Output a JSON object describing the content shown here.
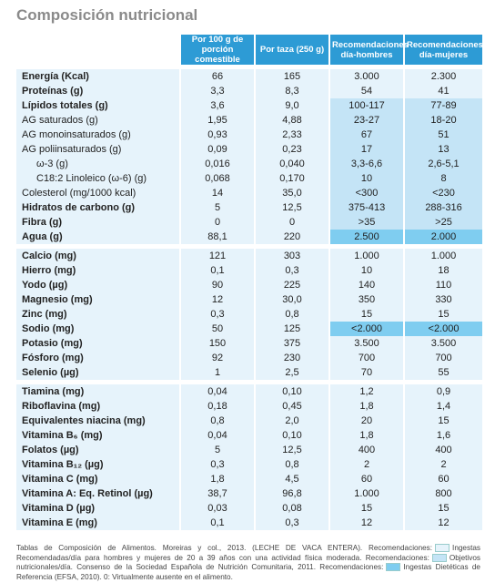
{
  "title": "Composición nutricional",
  "table": {
    "header": [
      "Por 100 g de porción comestible",
      "Por taza (250 g)",
      "Recomendaciones día-hombres",
      "Recomendaciones día-mujeres"
    ],
    "header_color": "#2d9bd5",
    "groups": [
      {
        "rows": [
          {
            "label": "Energía (Kcal)",
            "values": [
              "66",
              "165",
              "3.000",
              "2.300"
            ],
            "bold": true,
            "indent": false,
            "rec_color": "#e6f3fb"
          },
          {
            "label": "Proteínas (g)",
            "values": [
              "3,3",
              "8,3",
              "54",
              "41"
            ],
            "bold": true,
            "indent": false,
            "rec_color": "#e6f3fb"
          },
          {
            "label": "Lípidos totales (g)",
            "values": [
              "3,6",
              "9,0",
              "100-117",
              "77-89"
            ],
            "bold": true,
            "indent": false,
            "rec_color": "#c4e4f6"
          },
          {
            "label": "AG saturados (g)",
            "values": [
              "1,95",
              "4,88",
              "23-27",
              "18-20"
            ],
            "bold": false,
            "indent": false,
            "rec_color": "#c4e4f6"
          },
          {
            "label": "AG monoinsaturados (g)",
            "values": [
              "0,93",
              "2,33",
              "67",
              "51"
            ],
            "bold": false,
            "indent": false,
            "rec_color": "#c4e4f6"
          },
          {
            "label": "AG poliinsaturados (g)",
            "values": [
              "0,09",
              "0,23",
              "17",
              "13"
            ],
            "bold": false,
            "indent": false,
            "rec_color": "#c4e4f6"
          },
          {
            "label": "ω-3 (g)",
            "values": [
              "0,016",
              "0,040",
              "3,3-6,6",
              "2,6-5,1"
            ],
            "bold": false,
            "indent": true,
            "rec_color": "#c4e4f6"
          },
          {
            "label": "C18:2 Linoleico (ω-6) (g)",
            "values": [
              "0,068",
              "0,170",
              "10",
              "8"
            ],
            "bold": false,
            "indent": true,
            "rec_color": "#c4e4f6"
          },
          {
            "label": "Colesterol (mg/1000 kcal)",
            "values": [
              "14",
              "35,0",
              "<300",
              "<230"
            ],
            "bold": false,
            "indent": false,
            "rec_color": "#c4e4f6"
          },
          {
            "label": "Hidratos de carbono (g)",
            "values": [
              "5",
              "12,5",
              "375-413",
              "288-316"
            ],
            "bold": true,
            "indent": false,
            "rec_color": "#c4e4f6"
          },
          {
            "label": "Fibra (g)",
            "values": [
              "0",
              "0",
              ">35",
              ">25"
            ],
            "bold": true,
            "indent": false,
            "rec_color": "#c4e4f6"
          },
          {
            "label": "Agua (g)",
            "values": [
              "88,1",
              "220",
              "2.500",
              "2.000"
            ],
            "bold": true,
            "indent": false,
            "rec_color": "#7fcdf0"
          }
        ]
      },
      {
        "rows": [
          {
            "label": "Calcio (mg)",
            "values": [
              "121",
              "303",
              "1.000",
              "1.000"
            ],
            "bold": true,
            "indent": false,
            "rec_color": "#e6f3fb"
          },
          {
            "label": "Hierro (mg)",
            "values": [
              "0,1",
              "0,3",
              "10",
              "18"
            ],
            "bold": true,
            "indent": false,
            "rec_color": "#e6f3fb"
          },
          {
            "label": "Yodo (µg)",
            "values": [
              "90",
              "225",
              "140",
              "110"
            ],
            "bold": true,
            "indent": false,
            "rec_color": "#e6f3fb"
          },
          {
            "label": "Magnesio (mg)",
            "values": [
              "12",
              "30,0",
              "350",
              "330"
            ],
            "bold": true,
            "indent": false,
            "rec_color": "#e6f3fb"
          },
          {
            "label": "Zinc (mg)",
            "values": [
              "0,3",
              "0,8",
              "15",
              "15"
            ],
            "bold": true,
            "indent": false,
            "rec_color": "#e6f3fb"
          },
          {
            "label": "Sodio (mg)",
            "values": [
              "50",
              "125",
              "<2.000",
              "<2.000"
            ],
            "bold": true,
            "indent": false,
            "rec_color": "#7fcdf0"
          },
          {
            "label": "Potasio (mg)",
            "values": [
              "150",
              "375",
              "3.500",
              "3.500"
            ],
            "bold": true,
            "indent": false,
            "rec_color": "#e6f3fb"
          },
          {
            "label": "Fósforo (mg)",
            "values": [
              "92",
              "230",
              "700",
              "700"
            ],
            "bold": true,
            "indent": false,
            "rec_color": "#e6f3fb"
          },
          {
            "label": "Selenio (µg)",
            "values": [
              "1",
              "2,5",
              "70",
              "55"
            ],
            "bold": true,
            "indent": false,
            "rec_color": "#e6f3fb"
          }
        ]
      },
      {
        "rows": [
          {
            "label": "Tiamina (mg)",
            "values": [
              "0,04",
              "0,10",
              "1,2",
              "0,9"
            ],
            "bold": true,
            "indent": false,
            "rec_color": "#e6f3fb"
          },
          {
            "label": "Riboflavina (mg)",
            "values": [
              "0,18",
              "0,45",
              "1,8",
              "1,4"
            ],
            "bold": true,
            "indent": false,
            "rec_color": "#e6f3fb"
          },
          {
            "label": "Equivalentes niacina (mg)",
            "values": [
              "0,8",
              "2,0",
              "20",
              "15"
            ],
            "bold": true,
            "indent": false,
            "rec_color": "#e6f3fb"
          },
          {
            "label": "Vitamina B₆ (mg)",
            "values": [
              "0,04",
              "0,10",
              "1,8",
              "1,6"
            ],
            "bold": true,
            "indent": false,
            "rec_color": "#e6f3fb"
          },
          {
            "label": "Folatos (µg)",
            "values": [
              "5",
              "12,5",
              "400",
              "400"
            ],
            "bold": true,
            "indent": false,
            "rec_color": "#e6f3fb"
          },
          {
            "label": "Vitamina B₁₂ (µg)",
            "values": [
              "0,3",
              "0,8",
              "2",
              "2"
            ],
            "bold": true,
            "indent": false,
            "rec_color": "#e6f3fb"
          },
          {
            "label": "Vitamina C (mg)",
            "values": [
              "1,8",
              "4,5",
              "60",
              "60"
            ],
            "bold": true,
            "indent": false,
            "rec_color": "#e6f3fb"
          },
          {
            "label": "Vitamina A: Eq. Retinol (µg)",
            "values": [
              "38,7",
              "96,8",
              "1.000",
              "800"
            ],
            "bold": true,
            "indent": false,
            "rec_color": "#e6f3fb"
          },
          {
            "label": "Vitamina D (µg)",
            "values": [
              "0,03",
              "0,08",
              "15",
              "15"
            ],
            "bold": true,
            "indent": false,
            "rec_color": "#e6f3fb"
          },
          {
            "label": "Vitamina E (mg)",
            "values": [
              "0,1",
              "0,3",
              "12",
              "12"
            ],
            "bold": true,
            "indent": false,
            "rec_color": "#e6f3fb"
          }
        ]
      }
    ]
  },
  "footnote": [
    {
      "text": "Tablas de Composición de Alimentos. Moreiras y col., 2013. (LECHE DE VACA ENTERA). Recomendaciones:",
      "swatch": null
    },
    {
      "text": "Ingestas Recomendadas/día para hombres y mujeres de 20 a 39 años con una actividad física moderada. Recomendaciones:",
      "swatch": "#e6f3fb"
    },
    {
      "text": "Objetivos nutricionales/día. Consenso de la Sociedad Española de Nutrición Comunitaria, 2011. Recomendaciones:",
      "swatch": "#c4e4f6"
    },
    {
      "text": "Ingestas Dietéticas de Referencia (EFSA, 2010). 0: Virtualmente ausente en el alimento.",
      "swatch": "#7fcdf0"
    }
  ]
}
